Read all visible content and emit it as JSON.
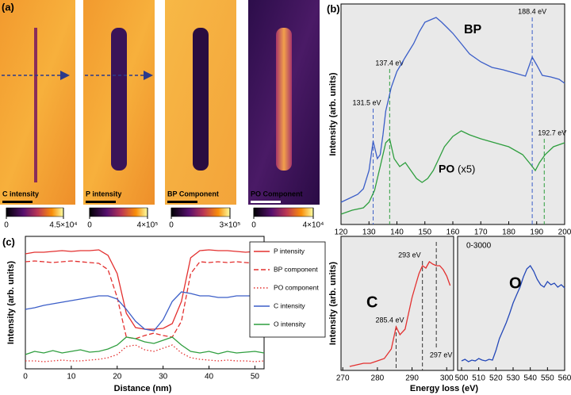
{
  "panel_a": {
    "label": "(a)",
    "images": [
      {
        "label": "C intensity",
        "clim": [
          0,
          45000
        ],
        "colorbar_ticks": [
          0,
          {
            "value": 45000,
            "label": "4.5×10⁴"
          }
        ]
      },
      {
        "label": "P intensity",
        "clim": [
          0,
          400000
        ],
        "colorbar_ticks": [
          0,
          {
            "value": 400000,
            "label": "4×10⁵"
          }
        ]
      },
      {
        "label": "BP Component",
        "clim": [
          0,
          300000
        ],
        "colorbar_ticks": [
          0,
          {
            "value": 300000,
            "label": "3×10⁵"
          }
        ]
      },
      {
        "label": "PO Component",
        "clim": [
          0,
          40000
        ],
        "colorbar_ticks": [
          0,
          {
            "value": 40000,
            "label": "4×10⁴"
          }
        ]
      }
    ]
  },
  "panel_b": {
    "label": "(b)",
    "xlabel": "Energy loss (eV)"
  },
  "panel_c": {
    "label": "(c)"
  },
  "chart_data": [
    {
      "type": "line",
      "ylabel": "Intensity (arb. units)",
      "xlim": [
        120,
        200
      ],
      "ylim": [
        0,
        278
      ],
      "xticks": [
        120,
        130,
        140,
        150,
        160,
        170,
        180,
        190,
        200
      ],
      "annotations": [
        {
          "text": "BP",
          "color": "#3b5ec8"
        },
        {
          "text": "PO",
          "color": "#2e9e3e"
        },
        {
          "text": "(x5)",
          "color": "#2e9e3e"
        }
      ],
      "markers": [
        {
          "x": 131.5,
          "label": "131.5 eV",
          "color": "#3b5ec8"
        },
        {
          "x": 137.4,
          "label": "137.4 eV",
          "color": "#2e9e3e"
        },
        {
          "x": 188.4,
          "label": "188.4 eV",
          "color": "#3b5ec8"
        },
        {
          "x": 192.7,
          "label": "192.7 eV",
          "color": "#2e9e3e"
        }
      ],
      "series": [
        {
          "color": "#3b5ec8",
          "x": [
            120,
            123,
            126,
            128,
            130,
            131.5,
            133,
            134,
            135,
            136,
            138,
            140,
            143,
            146,
            148,
            150,
            152,
            154,
            156,
            158,
            160,
            163,
            166,
            170,
            174,
            178,
            182,
            186,
            188.4,
            190,
            192,
            195,
            198,
            200
          ],
          "values": [
            28,
            33,
            38,
            45,
            68,
            105,
            83,
            88,
            113,
            143,
            173,
            193,
            211,
            228,
            243,
            255,
            258,
            261,
            255,
            248,
            241,
            228,
            215,
            205,
            198,
            195,
            191,
            187,
            211,
            201,
            188,
            186,
            183,
            178
          ]
        },
        {
          "color": "#2e9e3e",
          "x": [
            120,
            124,
            128,
            130,
            132,
            134,
            136,
            137.4,
            139,
            141,
            143,
            145,
            147,
            149,
            151,
            153,
            155,
            157,
            160,
            163,
            166,
            170,
            175,
            180,
            185,
            188,
            189.5,
            191,
            193,
            196,
            200
          ],
          "values": [
            13,
            18,
            21,
            28,
            43,
            73,
            103,
            108,
            83,
            73,
            78,
            68,
            58,
            53,
            58,
            68,
            83,
            98,
            111,
            118,
            113,
            108,
            103,
            98,
            88,
            75,
            68,
            78,
            88,
            98,
            103
          ]
        }
      ]
    },
    {
      "type": "line",
      "ylabel": "Intensity (arb. units)",
      "xlim": [
        269.5,
        302
      ],
      "ylim": [
        0,
        169
      ],
      "xticks": [
        270,
        280,
        290,
        300
      ],
      "annotations": [
        {
          "text": "C",
          "color": "#e3302f"
        }
      ],
      "markers": [
        {
          "x": 285.4,
          "label": "285.4 eV",
          "color": "#333333"
        },
        {
          "x": 293,
          "label": "293 eV",
          "color": "#333333"
        },
        {
          "x": 297,
          "label": "297 eV",
          "color": "#333333"
        }
      ],
      "series": [
        {
          "color": "#e3302f",
          "x": [
            272,
            274,
            276,
            278,
            280,
            282,
            284,
            285.4,
            286.5,
            288,
            289,
            290,
            291,
            292,
            293,
            294,
            295,
            296,
            297,
            298,
            299,
            300,
            301
          ],
          "values": [
            5,
            7,
            9,
            9,
            12,
            15,
            27,
            55,
            45,
            52,
            72,
            92,
            107,
            122,
            132,
            129,
            137,
            134,
            132,
            132,
            127,
            119,
            107
          ]
        }
      ]
    },
    {
      "type": "line",
      "xlim": [
        497.7,
        560
      ],
      "ylim": [
        0,
        169
      ],
      "xticks": [
        500,
        510,
        520,
        530,
        540,
        550,
        560
      ],
      "annotations": [
        {
          "text": "O",
          "color": "#2448b8"
        },
        {
          "text": "0-3000",
          "color": "#000000"
        }
      ],
      "series": [
        {
          "color": "#2448b8",
          "x": [
            500,
            502,
            504,
            506,
            508,
            510,
            512,
            514,
            516,
            518,
            520,
            522,
            524,
            526,
            528,
            530,
            532,
            534,
            536,
            538,
            540,
            542,
            544,
            546,
            548,
            550,
            552,
            554,
            556,
            558,
            560
          ],
          "values": [
            12,
            14,
            11,
            13,
            12,
            15,
            13,
            12,
            14,
            13,
            25,
            40,
            50,
            60,
            72,
            85,
            95,
            105,
            118,
            128,
            132,
            125,
            115,
            108,
            105,
            112,
            108,
            110,
            105,
            108,
            104
          ]
        }
      ]
    },
    {
      "type": "line",
      "xlabel": "Distance (nm)",
      "ylabel": "Intensity (arb. units)",
      "xlim": [
        0,
        52
      ],
      "ylim": [
        0,
        167
      ],
      "xticks": [
        0,
        10,
        20,
        30,
        40,
        50
      ],
      "x": [
        0,
        2,
        4,
        6,
        8,
        10,
        12,
        14,
        16,
        18,
        20,
        22,
        24,
        26,
        28,
        30,
        32,
        34,
        36,
        38,
        40,
        42,
        44,
        46,
        48,
        50,
        52
      ],
      "series": [
        {
          "name": "P intensity",
          "color": "#e3302f",
          "style": "solid",
          "values": [
            145,
            147,
            147,
            148,
            149,
            148,
            149,
            149,
            150,
            143,
            120,
            70,
            52,
            50,
            50,
            51,
            57,
            85,
            140,
            149,
            150,
            149,
            149,
            148,
            147,
            148,
            145
          ]
        },
        {
          "name": "BP component",
          "color": "#e3302f",
          "style": "dashed",
          "values": [
            135,
            136,
            135,
            134,
            135,
            136,
            135,
            134,
            133,
            125,
            90,
            40,
            38,
            42,
            45,
            42,
            40,
            60,
            120,
            135,
            134,
            135,
            134,
            135,
            134,
            133,
            132
          ]
        },
        {
          "name": "PO component",
          "color": "#e3302f",
          "style": "dotted",
          "values": [
            10,
            10,
            9,
            10,
            11,
            10,
            10,
            11,
            12,
            14,
            18,
            28,
            30,
            24,
            22,
            26,
            30,
            20,
            14,
            12,
            11,
            10,
            11,
            10,
            10,
            9,
            10
          ]
        },
        {
          "name": "C intensity",
          "color": "#3b5ec8",
          "style": "solid",
          "values": [
            75,
            77,
            80,
            82,
            84,
            86,
            88,
            90,
            92,
            92,
            88,
            75,
            60,
            50,
            48,
            62,
            85,
            97,
            95,
            92,
            92,
            90,
            90,
            92,
            92,
            92,
            92
          ]
        },
        {
          "name": "O intensity",
          "color": "#2e9e3e",
          "style": "solid",
          "values": [
            18,
            22,
            20,
            23,
            20,
            22,
            24,
            21,
            22,
            25,
            30,
            40,
            38,
            34,
            32,
            36,
            40,
            30,
            22,
            20,
            22,
            19,
            22,
            20,
            21,
            22,
            20
          ]
        }
      ]
    }
  ]
}
